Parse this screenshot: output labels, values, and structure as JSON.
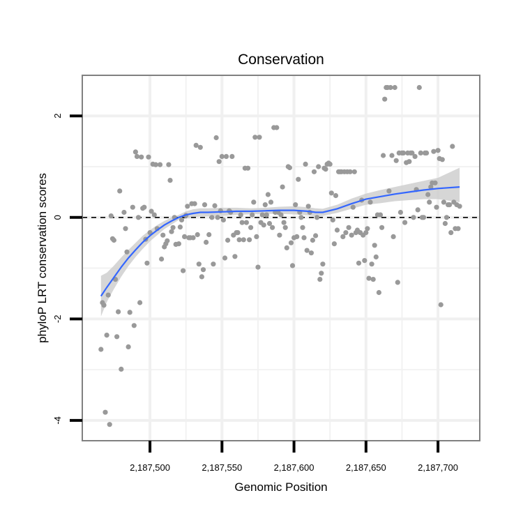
{
  "chart_data": {
    "type": "scatter",
    "title": "Conservation",
    "xlabel": "Genomic Position",
    "ylabel": "phyloP LRT conservation scores",
    "xlim": [
      2187453,
      2187729
    ],
    "ylim": [
      -4.4,
      2.8
    ],
    "x_ticks": [
      {
        "value": 2187500,
        "label": "2,187,500"
      },
      {
        "value": 2187550,
        "label": "2,187,550"
      },
      {
        "value": 2187600,
        "label": "2,187,600"
      },
      {
        "value": 2187650,
        "label": "2,187,650"
      },
      {
        "value": 2187700,
        "label": "2,187,700"
      }
    ],
    "y_ticks": [
      {
        "value": -4,
        "label": "-4"
      },
      {
        "value": -2,
        "label": "-2"
      },
      {
        "value": 0,
        "label": "0"
      },
      {
        "value": 2,
        "label": "2"
      }
    ],
    "reference_line": {
      "y": 0,
      "style": "dashed",
      "color": "#000000"
    },
    "grid": true,
    "colors": {
      "points": "#999999",
      "smooth": "#3366ff",
      "band": "#cccccc",
      "frame": "#808080",
      "grid": "#f2f2f2"
    },
    "series": [
      {
        "name": "scores",
        "kind": "points",
        "points": [
          [
            2187466,
            -2.6
          ],
          [
            2187467,
            -1.68
          ],
          [
            2187468,
            -1.73
          ],
          [
            2187469,
            -3.84
          ],
          [
            2187470,
            -2.32
          ],
          [
            2187471,
            -1.53
          ],
          [
            2187472,
            -4.08
          ],
          [
            2187473,
            0.03
          ],
          [
            2187474,
            -0.42
          ],
          [
            2187475,
            -0.45
          ],
          [
            2187476,
            -1.22
          ],
          [
            2187477,
            -2.35
          ],
          [
            2187478,
            -1.86
          ],
          [
            2187479,
            0.52
          ],
          [
            2187480,
            -2.99
          ],
          [
            2187482,
            0.1
          ],
          [
            2187483,
            -0.22
          ],
          [
            2187484,
            -0.68
          ],
          [
            2187485,
            -2.55
          ],
          [
            2187486,
            -1.87
          ],
          [
            2187488,
            0.2
          ],
          [
            2187489,
            -2.13
          ],
          [
            2187490,
            1.29
          ],
          [
            2187491,
            1.2
          ],
          [
            2187492,
            0.0
          ],
          [
            2187493,
            -1.68
          ],
          [
            2187494,
            1.19
          ],
          [
            2187495,
            0.18
          ],
          [
            2187496,
            0.2
          ],
          [
            2187497,
            -0.43
          ],
          [
            2187498,
            -0.9
          ],
          [
            2187499,
            1.19
          ],
          [
            2187500,
            -0.3
          ],
          [
            2187501,
            0.12
          ],
          [
            2187502,
            1.05
          ],
          [
            2187503,
            0.05
          ],
          [
            2187504,
            1.04
          ],
          [
            2187505,
            -0.22
          ],
          [
            2187507,
            1.04
          ],
          [
            2187508,
            -0.82
          ],
          [
            2187509,
            -0.35
          ],
          [
            2187510,
            -0.58
          ],
          [
            2187511,
            -0.52
          ],
          [
            2187512,
            -0.46
          ],
          [
            2187513,
            1.04
          ],
          [
            2187514,
            0.73
          ],
          [
            2187515,
            -0.28
          ],
          [
            2187516,
            -0.2
          ],
          [
            2187517,
            0.0
          ],
          [
            2187518,
            -0.53
          ],
          [
            2187520,
            -0.52
          ],
          [
            2187521,
            -0.19
          ],
          [
            2187522,
            -0.05
          ],
          [
            2187523,
            -1.05
          ],
          [
            2187524,
            -0.38
          ],
          [
            2187525,
            0.04
          ],
          [
            2187526,
            0.22
          ],
          [
            2187527,
            -0.4
          ],
          [
            2187528,
            -0.4
          ],
          [
            2187529,
            0.27
          ],
          [
            2187530,
            -0.4
          ],
          [
            2187531,
            0.27
          ],
          [
            2187532,
            1.42
          ],
          [
            2187533,
            -0.34
          ],
          [
            2187534,
            -0.92
          ],
          [
            2187535,
            1.38
          ],
          [
            2187536,
            -1.17
          ],
          [
            2187537,
            -1.03
          ],
          [
            2187538,
            0.25
          ],
          [
            2187539,
            -0.49
          ],
          [
            2187541,
            -0.34
          ],
          [
            2187543,
            0.0
          ],
          [
            2187544,
            -0.92
          ],
          [
            2187545,
            0.23
          ],
          [
            2187546,
            1.57
          ],
          [
            2187547,
            0.0
          ],
          [
            2187548,
            1.1
          ],
          [
            2187549,
            0.13
          ],
          [
            2187550,
            1.2
          ],
          [
            2187551,
            -0.05
          ],
          [
            2187552,
            -0.8
          ],
          [
            2187553,
            1.2
          ],
          [
            2187554,
            -0.45
          ],
          [
            2187555,
            0.13
          ],
          [
            2187556,
            0.1
          ],
          [
            2187557,
            1.2
          ],
          [
            2187558,
            -0.35
          ],
          [
            2187559,
            -0.77
          ],
          [
            2187560,
            -0.3
          ],
          [
            2187561,
            -0.3
          ],
          [
            2187562,
            -0.44
          ],
          [
            2187563,
            0.05
          ],
          [
            2187564,
            -0.1
          ],
          [
            2187565,
            -0.44
          ],
          [
            2187566,
            0.97
          ],
          [
            2187567,
            -0.1
          ],
          [
            2187568,
            0.97
          ],
          [
            2187569,
            -0.44
          ],
          [
            2187570,
            -0.2
          ],
          [
            2187571,
            0.05
          ],
          [
            2187572,
            0.3
          ],
          [
            2187573,
            1.58
          ],
          [
            2187574,
            -0.38
          ],
          [
            2187575,
            -0.98
          ],
          [
            2187576,
            1.58
          ],
          [
            2187577,
            -0.1
          ],
          [
            2187578,
            0.05
          ],
          [
            2187579,
            -0.15
          ],
          [
            2187580,
            0.25
          ],
          [
            2187581,
            0.05
          ],
          [
            2187582,
            0.45
          ],
          [
            2187583,
            -0.12
          ],
          [
            2187584,
            0.3
          ],
          [
            2187585,
            -0.2
          ],
          [
            2187586,
            1.77
          ],
          [
            2187587,
            0.1
          ],
          [
            2187588,
            1.77
          ],
          [
            2187589,
            0.1
          ],
          [
            2187590,
            -0.35
          ],
          [
            2187591,
            0.05
          ],
          [
            2187592,
            0.6
          ],
          [
            2187593,
            -0.1
          ],
          [
            2187594,
            -0.2
          ],
          [
            2187595,
            -0.6
          ],
          [
            2187596,
            1.0
          ],
          [
            2187597,
            0.98
          ],
          [
            2187598,
            -0.5
          ],
          [
            2187599,
            -0.95
          ],
          [
            2187600,
            -0.4
          ],
          [
            2187601,
            0.25
          ],
          [
            2187602,
            -0.38
          ],
          [
            2187603,
            0.75
          ],
          [
            2187604,
            0.1
          ],
          [
            2187605,
            0.0
          ],
          [
            2187606,
            -0.2
          ],
          [
            2187607,
            -0.4
          ],
          [
            2187608,
            1.05
          ],
          [
            2187609,
            -0.65
          ],
          [
            2187610,
            0.22
          ],
          [
            2187611,
            0.1
          ],
          [
            2187612,
            -0.7
          ],
          [
            2187613,
            -0.45
          ],
          [
            2187614,
            0.9
          ],
          [
            2187615,
            -0.36
          ],
          [
            2187616,
            0.0
          ],
          [
            2187617,
            1.0
          ],
          [
            2187618,
            -1.22
          ],
          [
            2187619,
            -1.1
          ],
          [
            2187620,
            -0.92
          ],
          [
            2187621,
            0.97
          ],
          [
            2187622,
            0.95
          ],
          [
            2187623,
            1.05
          ],
          [
            2187624,
            1.07
          ],
          [
            2187625,
            1.05
          ],
          [
            2187626,
            0.48
          ],
          [
            2187627,
            -0.05
          ],
          [
            2187628,
            -0.52
          ],
          [
            2187629,
            0.43
          ],
          [
            2187630,
            -0.25
          ],
          [
            2187631,
            0.9
          ],
          [
            2187632,
            0.9
          ],
          [
            2187633,
            0.9
          ],
          [
            2187634,
            -0.38
          ],
          [
            2187635,
            0.9
          ],
          [
            2187636,
            -0.3
          ],
          [
            2187637,
            0.9
          ],
          [
            2187638,
            -0.2
          ],
          [
            2187639,
            0.9
          ],
          [
            2187640,
            -0.35
          ],
          [
            2187641,
            0.2
          ],
          [
            2187642,
            0.9
          ],
          [
            2187643,
            -0.3
          ],
          [
            2187644,
            -0.25
          ],
          [
            2187645,
            -0.9
          ],
          [
            2187646,
            -0.3
          ],
          [
            2187647,
            0.34
          ],
          [
            2187648,
            -0.35
          ],
          [
            2187649,
            -0.85
          ],
          [
            2187650,
            -0.3
          ],
          [
            2187651,
            -0.22
          ],
          [
            2187652,
            -1.2
          ],
          [
            2187653,
            0.3
          ],
          [
            2187654,
            -0.92
          ],
          [
            2187655,
            -1.22
          ],
          [
            2187656,
            -0.55
          ],
          [
            2187657,
            -0.78
          ],
          [
            2187658,
            0.05
          ],
          [
            2187659,
            -1.48
          ],
          [
            2187660,
            0.05
          ],
          [
            2187661,
            -0.2
          ],
          [
            2187662,
            1.22
          ],
          [
            2187663,
            2.33
          ],
          [
            2187664,
            2.56
          ],
          [
            2187665,
            2.56
          ],
          [
            2187666,
            0.52
          ],
          [
            2187667,
            2.56
          ],
          [
            2187668,
            1.22
          ],
          [
            2187669,
            -0.38
          ],
          [
            2187670,
            2.56
          ],
          [
            2187671,
            1.12
          ],
          [
            2187672,
            -1.28
          ],
          [
            2187673,
            1.27
          ],
          [
            2187674,
            0.1
          ],
          [
            2187675,
            1.27
          ],
          [
            2187676,
            1.27
          ],
          [
            2187677,
            -0.1
          ],
          [
            2187678,
            1.08
          ],
          [
            2187679,
            1.27
          ],
          [
            2187680,
            1.1
          ],
          [
            2187681,
            1.27
          ],
          [
            2187682,
            1.27
          ],
          [
            2187683,
            0.0
          ],
          [
            2187684,
            1.2
          ],
          [
            2187685,
            0.55
          ],
          [
            2187686,
            0.15
          ],
          [
            2187687,
            2.56
          ],
          [
            2187688,
            1.27
          ],
          [
            2187689,
            0.0
          ],
          [
            2187690,
            0.0
          ],
          [
            2187691,
            1.27
          ],
          [
            2187692,
            1.27
          ],
          [
            2187693,
            0.45
          ],
          [
            2187694,
            0.3
          ],
          [
            2187695,
            0.6
          ],
          [
            2187696,
            0.68
          ],
          [
            2187697,
            1.3
          ],
          [
            2187698,
            0.68
          ],
          [
            2187699,
            0.2
          ],
          [
            2187700,
            1.32
          ],
          [
            2187701,
            1.16
          ],
          [
            2187702,
            -1.72
          ],
          [
            2187703,
            1.14
          ],
          [
            2187704,
            0.3
          ],
          [
            2187705,
            -0.12
          ],
          [
            2187706,
            0.0
          ],
          [
            2187707,
            0.25
          ],
          [
            2187708,
            0.25
          ],
          [
            2187709,
            -0.3
          ],
          [
            2187710,
            1.4
          ],
          [
            2187711,
            0.3
          ],
          [
            2187712,
            -0.22
          ],
          [
            2187713,
            0.25
          ],
          [
            2187714,
            -0.22
          ],
          [
            2187715,
            0.22
          ]
        ]
      },
      {
        "name": "loess fit",
        "kind": "line",
        "x": [
          2187466,
          2187470,
          2187475,
          2187480,
          2187485,
          2187490,
          2187495,
          2187500,
          2187505,
          2187510,
          2187515,
          2187520,
          2187525,
          2187530,
          2187535,
          2187540,
          2187550,
          2187560,
          2187570,
          2187580,
          2187590,
          2187600,
          2187610,
          2187615,
          2187620,
          2187630,
          2187640,
          2187650,
          2187660,
          2187670,
          2187680,
          2187690,
          2187700,
          2187715
        ],
        "y": [
          -1.55,
          -1.38,
          -1.18,
          -0.98,
          -0.8,
          -0.64,
          -0.49,
          -0.36,
          -0.25,
          -0.15,
          -0.07,
          0.0,
          0.05,
          0.08,
          0.1,
          0.1,
          0.11,
          0.12,
          0.12,
          0.13,
          0.14,
          0.14,
          0.12,
          0.1,
          0.1,
          0.17,
          0.27,
          0.36,
          0.41,
          0.46,
          0.5,
          0.54,
          0.57,
          0.6
        ],
        "lower": [
          -1.95,
          -1.67,
          -1.41,
          -1.17,
          -0.96,
          -0.78,
          -0.62,
          -0.47,
          -0.35,
          -0.23,
          -0.14,
          -0.05,
          -0.02,
          0.0,
          0.02,
          0.02,
          0.03,
          0.05,
          0.06,
          0.07,
          0.07,
          0.06,
          0.04,
          0.02,
          0.03,
          0.09,
          0.17,
          0.25,
          0.28,
          0.32,
          0.34,
          0.36,
          0.36,
          0.3
        ],
        "upper": [
          -1.15,
          -1.09,
          -0.95,
          -0.79,
          -0.64,
          -0.5,
          -0.36,
          -0.25,
          -0.15,
          -0.07,
          0.0,
          0.05,
          0.12,
          0.16,
          0.18,
          0.18,
          0.19,
          0.19,
          0.18,
          0.19,
          0.21,
          0.22,
          0.2,
          0.18,
          0.17,
          0.25,
          0.37,
          0.47,
          0.54,
          0.6,
          0.66,
          0.72,
          0.78,
          0.98
        ]
      }
    ]
  }
}
